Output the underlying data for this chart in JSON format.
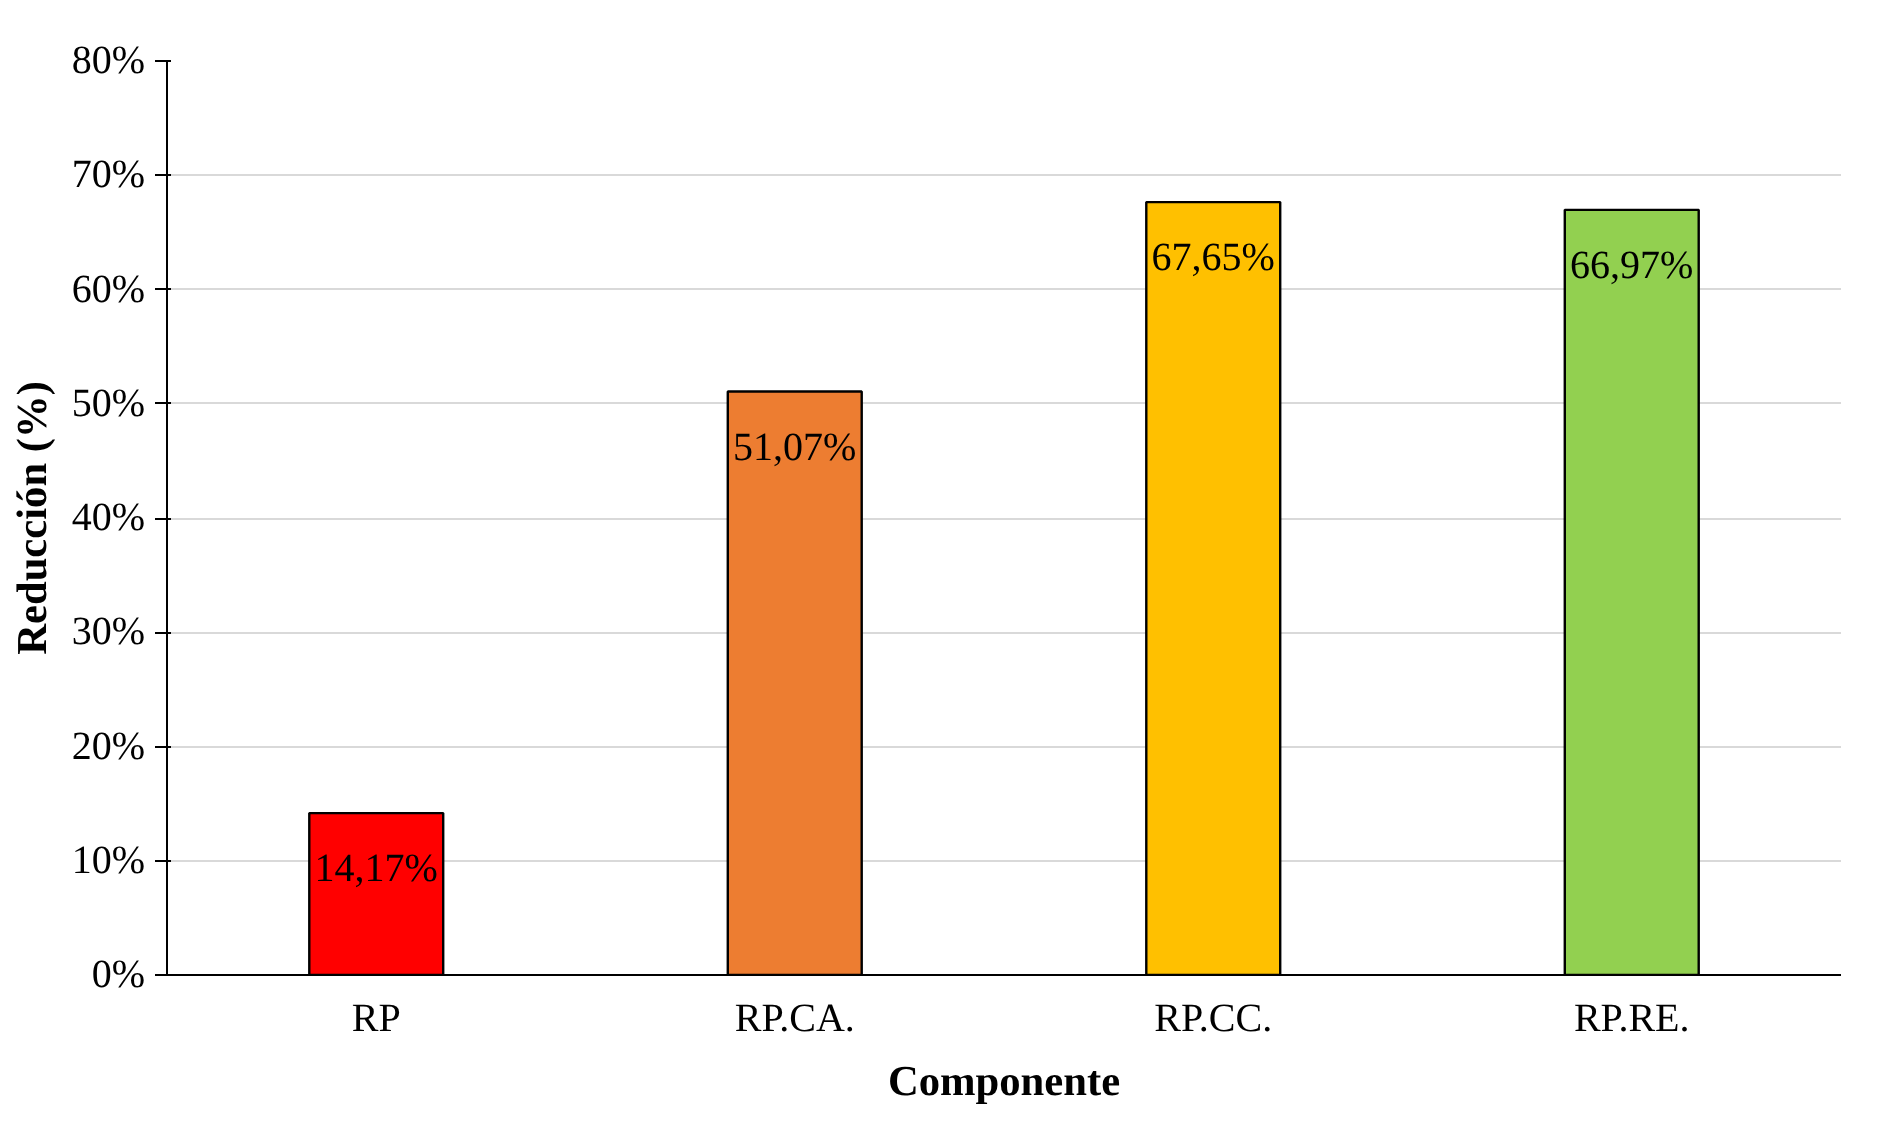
{
  "chart_data": {
    "type": "bar",
    "xlabel": "Componente",
    "ylabel": "Reducción (%)",
    "categories": [
      "RP",
      "RP.CA.",
      "RP.CC.",
      "RP.RE."
    ],
    "values": [
      14.17,
      51.07,
      67.65,
      66.97
    ],
    "colors": [
      "#ff0000",
      "#ed7d31",
      "#ffc000",
      "#92d050"
    ],
    "value_labels": [
      "14,17%",
      "51,07%",
      "67,65%",
      "66,97%"
    ],
    "ylim": [
      0,
      80
    ],
    "yticks": [
      {
        "value": 0,
        "label": "0%"
      },
      {
        "value": 10,
        "label": "10%"
      },
      {
        "value": 20,
        "label": "20%"
      },
      {
        "value": 30,
        "label": "30%"
      },
      {
        "value": 40,
        "label": "40%"
      },
      {
        "value": 50,
        "label": "50%"
      },
      {
        "value": 60,
        "label": "60%"
      },
      {
        "value": 70,
        "label": "70%"
      },
      {
        "value": 80,
        "label": "80%"
      }
    ],
    "grid": "y"
  }
}
